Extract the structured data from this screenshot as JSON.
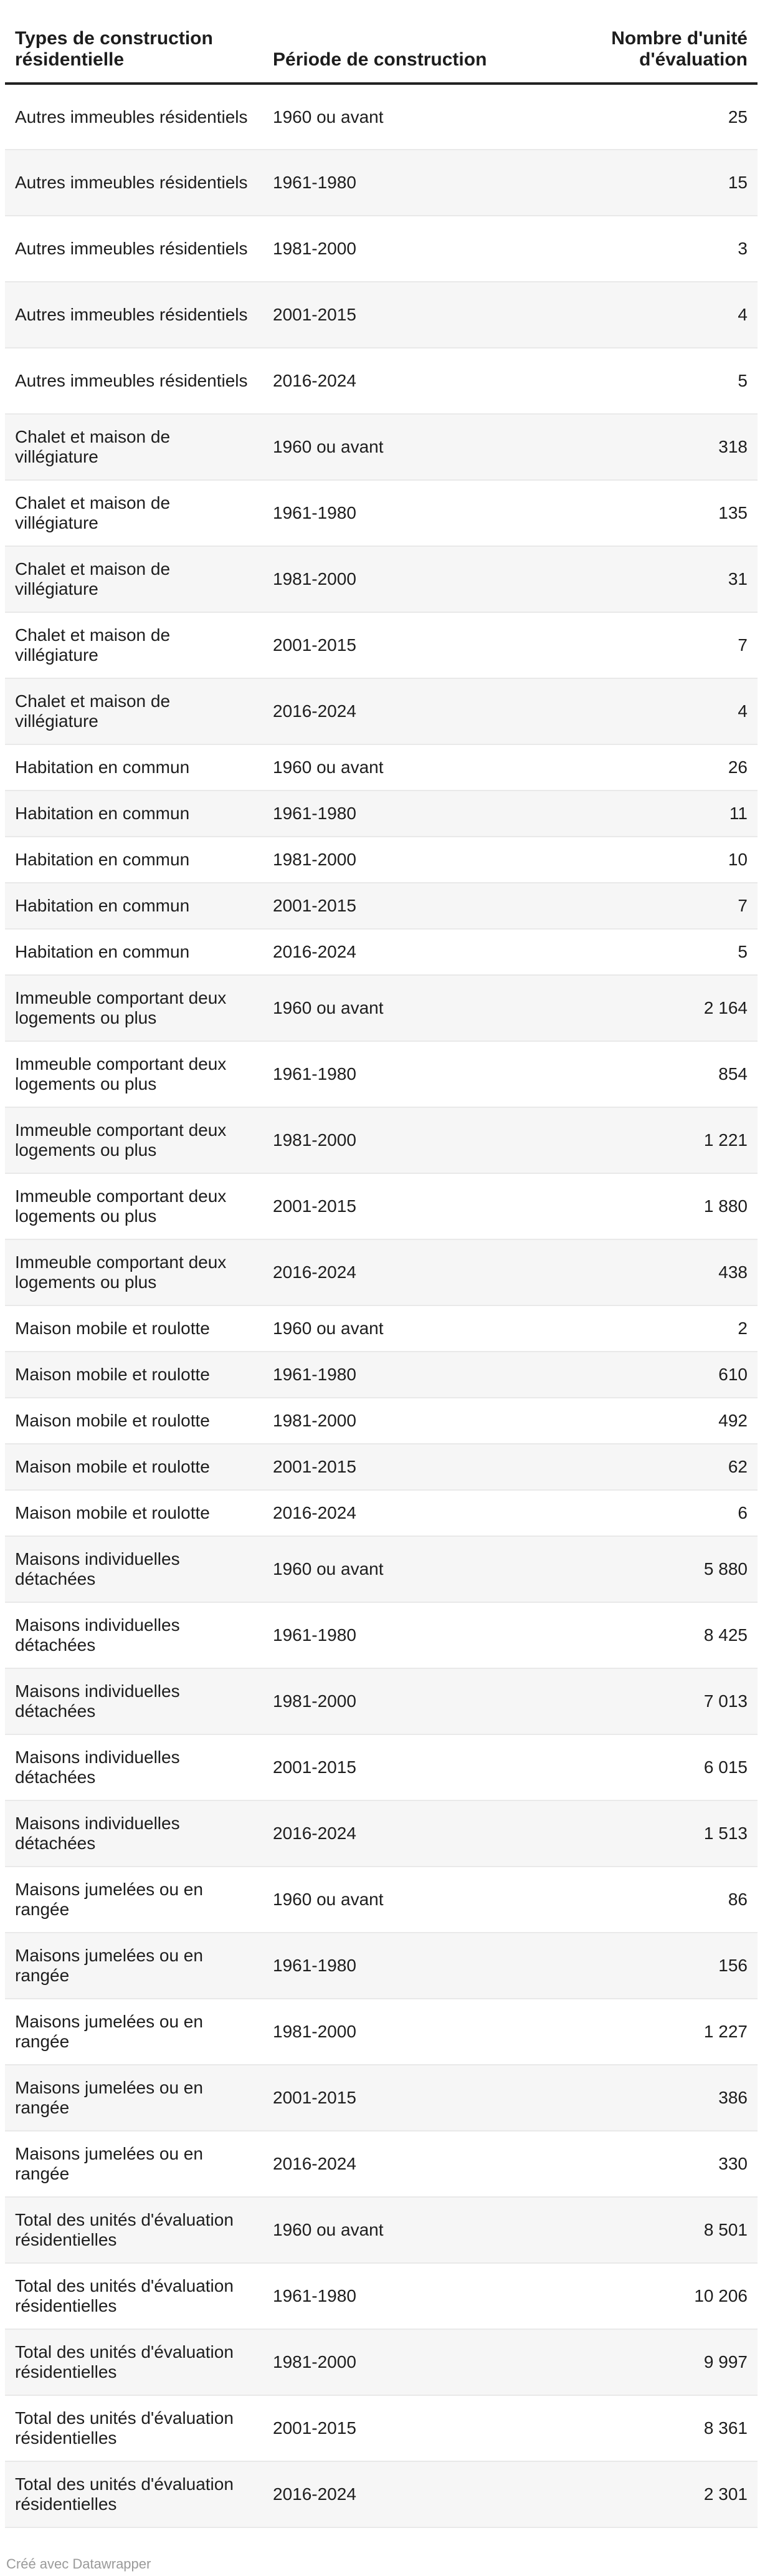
{
  "chart_data": {
    "type": "table",
    "columns": [
      "Types de construction résidentielle",
      "Période de construction",
      "Nombre d'unité d'évaluation"
    ],
    "rows": [
      {
        "type": "Autres immeubles résidentiels",
        "periode": "1960 ou avant",
        "nombre": "25"
      },
      {
        "type": "Autres immeubles résidentiels",
        "periode": "1961-1980",
        "nombre": "15"
      },
      {
        "type": "Autres immeubles résidentiels",
        "periode": "1981-2000",
        "nombre": "3"
      },
      {
        "type": "Autres immeubles résidentiels",
        "periode": "2001-2015",
        "nombre": "4"
      },
      {
        "type": "Autres immeubles résidentiels",
        "periode": "2016-2024",
        "nombre": "5"
      },
      {
        "type": "Chalet et maison de villégiature",
        "periode": "1960 ou avant",
        "nombre": "318"
      },
      {
        "type": "Chalet et maison de villégiature",
        "periode": "1961-1980",
        "nombre": "135"
      },
      {
        "type": "Chalet et maison de villégiature",
        "periode": "1981-2000",
        "nombre": "31"
      },
      {
        "type": "Chalet et maison de villégiature",
        "periode": "2001-2015",
        "nombre": "7"
      },
      {
        "type": "Chalet et maison de villégiature",
        "periode": "2016-2024",
        "nombre": "4"
      },
      {
        "type": "Habitation en commun",
        "periode": "1960 ou avant",
        "nombre": "26"
      },
      {
        "type": "Habitation en commun",
        "periode": "1961-1980",
        "nombre": "11"
      },
      {
        "type": "Habitation en commun",
        "periode": "1981-2000",
        "nombre": "10"
      },
      {
        "type": "Habitation en commun",
        "periode": "2001-2015",
        "nombre": "7"
      },
      {
        "type": "Habitation en commun",
        "periode": "2016-2024",
        "nombre": "5"
      },
      {
        "type": "Immeuble comportant deux logements ou plus",
        "periode": "1960 ou avant",
        "nombre": "2 164"
      },
      {
        "type": "Immeuble comportant deux logements ou plus",
        "periode": "1961-1980",
        "nombre": "854"
      },
      {
        "type": "Immeuble comportant deux logements ou plus",
        "periode": "1981-2000",
        "nombre": "1 221"
      },
      {
        "type": "Immeuble comportant deux logements ou plus",
        "periode": "2001-2015",
        "nombre": "1 880"
      },
      {
        "type": "Immeuble comportant deux logements ou plus",
        "periode": "2016-2024",
        "nombre": "438"
      },
      {
        "type": "Maison mobile et roulotte",
        "periode": "1960 ou avant",
        "nombre": "2"
      },
      {
        "type": "Maison mobile et roulotte",
        "periode": "1961-1980",
        "nombre": "610"
      },
      {
        "type": "Maison mobile et roulotte",
        "periode": "1981-2000",
        "nombre": "492"
      },
      {
        "type": "Maison mobile et roulotte",
        "periode": "2001-2015",
        "nombre": "62"
      },
      {
        "type": "Maison mobile et roulotte",
        "periode": "2016-2024",
        "nombre": "6"
      },
      {
        "type": "Maisons individuelles détachées",
        "periode": "1960 ou avant",
        "nombre": "5 880"
      },
      {
        "type": "Maisons individuelles détachées",
        "periode": "1961-1980",
        "nombre": "8 425"
      },
      {
        "type": "Maisons individuelles détachées",
        "periode": "1981-2000",
        "nombre": "7 013"
      },
      {
        "type": "Maisons individuelles détachées",
        "periode": "2001-2015",
        "nombre": "6 015"
      },
      {
        "type": "Maisons individuelles détachées",
        "periode": "2016-2024",
        "nombre": "1 513"
      },
      {
        "type": "Maisons jumelées ou en rangée",
        "periode": "1960 ou avant",
        "nombre": "86"
      },
      {
        "type": "Maisons jumelées ou en rangée",
        "periode": "1961-1980",
        "nombre": "156"
      },
      {
        "type": "Maisons jumelées ou en rangée",
        "periode": "1981-2000",
        "nombre": "1 227"
      },
      {
        "type": "Maisons jumelées ou en rangée",
        "periode": "2001-2015",
        "nombre": "386"
      },
      {
        "type": "Maisons jumelées ou en rangée",
        "periode": "2016-2024",
        "nombre": "330"
      },
      {
        "type": "Total des unités d'évaluation résidentielles",
        "periode": "1960 ou avant",
        "nombre": "8 501"
      },
      {
        "type": "Total des unités d'évaluation résidentielles",
        "periode": "1961-1980",
        "nombre": "10 206"
      },
      {
        "type": "Total des unités d'évaluation résidentielles",
        "periode": "1981-2000",
        "nombre": "9 997"
      },
      {
        "type": "Total des unités d'évaluation résidentielles",
        "periode": "2001-2015",
        "nombre": "8 361"
      },
      {
        "type": "Total des unités d'évaluation résidentielles",
        "periode": "2016-2024",
        "nombre": "2 301"
      }
    ]
  },
  "footer": "Créé avec Datawrapper"
}
